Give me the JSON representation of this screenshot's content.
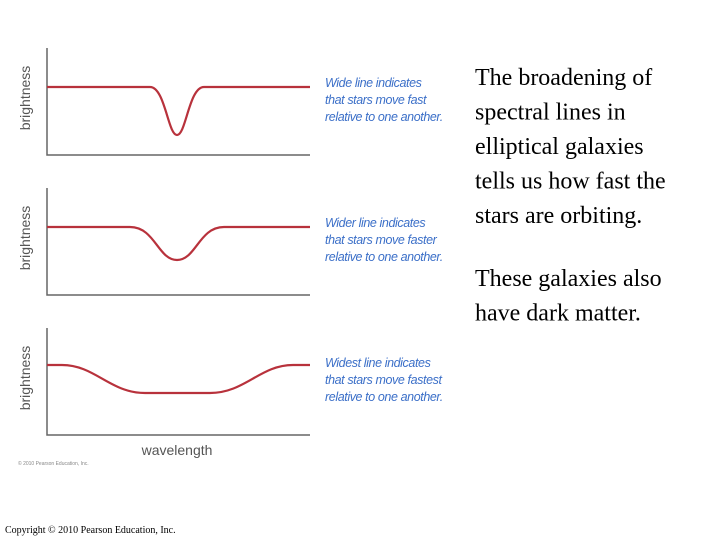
{
  "diagram": {
    "panels": [
      {
        "ylabel": "brightness",
        "caption": [
          "Wide line indicates",
          "that stars move fast",
          "relative to one another."
        ]
      },
      {
        "ylabel": "brightness",
        "caption": [
          "Wider line indicates",
          "that stars move faster",
          "relative to one another."
        ]
      },
      {
        "ylabel": "brightness",
        "caption": [
          "Widest line indicates",
          "that stars move fastest",
          "relative to one another."
        ]
      }
    ],
    "xlabel": "wavelength",
    "credit": "© 2010 Pearson Education, Inc."
  },
  "text": {
    "paragraphs": [
      [
        "The broadening of",
        "spectral lines in",
        "elliptical galaxies",
        "tells us how fast the",
        "stars are orbiting."
      ],
      [
        "These galaxies also",
        "have dark matter."
      ]
    ]
  },
  "footer": "Copyright © 2010 Pearson Education, Inc."
}
